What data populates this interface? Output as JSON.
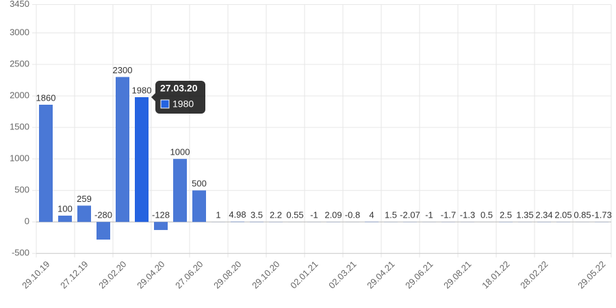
{
  "chart_data": {
    "type": "bar",
    "categories": [
      "29.10.19",
      null,
      "27.12.19",
      null,
      "29.02.20",
      null,
      "29.04.20",
      null,
      "27.06.20",
      null,
      "29.08.20",
      null,
      "29.10.20",
      null,
      "02.01.21",
      null,
      "02.03.21",
      null,
      "29.04.21",
      null,
      "29.06.21",
      null,
      "29.08.21",
      null,
      "18.01.22",
      null,
      "28.02.22",
      null,
      null,
      "29.05.22"
    ],
    "series": [
      {
        "name": "1980",
        "color": "#4a78d6",
        "values": [
          1860,
          100,
          259,
          -280,
          2300,
          1980,
          -128,
          1000,
          500,
          1,
          4.98,
          3.5,
          2.2,
          0.55,
          -1,
          2.09,
          -0.8,
          4,
          1.5,
          -2.07,
          -1,
          -1.7,
          -1.3,
          0.5,
          2.5,
          1.35,
          2.34,
          2.05,
          0.85,
          -1.73
        ]
      }
    ],
    "ylim": [
      -500,
      3450
    ],
    "yticks": [
      -500,
      0,
      500,
      1000,
      1500,
      2000,
      2500,
      3000,
      3450
    ],
    "grid": true,
    "highlight": {
      "index": 5,
      "color": "#2563e0"
    },
    "tooltip": {
      "title": "27.03.20"
    }
  }
}
